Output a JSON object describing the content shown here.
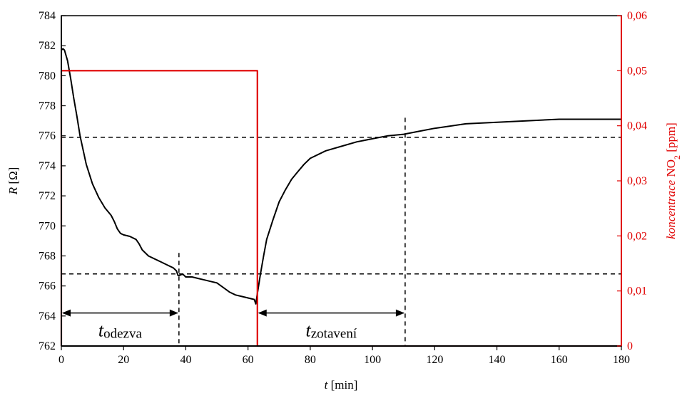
{
  "chart_data": {
    "type": "line",
    "xlabel_var": "t",
    "xlabel_unit": " [min]",
    "ylabel_var": "R",
    "ylabel_unit": " [Ω]",
    "y2label_var": "koncentrace",
    "y2label_gas": " NO",
    "y2label_sub": "2",
    "y2label_unit": " [ppm]",
    "xlim": [
      0,
      180
    ],
    "ylim": [
      762,
      784
    ],
    "y2lim": [
      0,
      0.06
    ],
    "x_ticks": [
      "0",
      "20",
      "40",
      "60",
      "80",
      "100",
      "120",
      "140",
      "160",
      "180"
    ],
    "y_ticks": [
      "762",
      "764",
      "766",
      "768",
      "770",
      "772",
      "774",
      "776",
      "778",
      "780",
      "782",
      "784"
    ],
    "y2_ticks": [
      "0",
      "0,01",
      "0,02",
      "0,03",
      "0,04",
      "0,05",
      "0,06"
    ],
    "grid": false,
    "legend": "none",
    "colors": {
      "resistance": "#000000",
      "concentration": "#e00000"
    },
    "series": [
      {
        "axis": "left",
        "x": [
          0,
          0.5,
          1,
          2,
          3,
          4,
          5,
          6,
          8,
          10,
          12,
          14,
          16,
          17,
          18,
          19,
          20,
          22,
          24,
          25,
          26,
          28,
          30,
          32,
          34,
          36,
          37,
          37.5,
          38,
          39,
          40,
          42,
          44,
          46,
          48,
          50,
          52,
          54,
          56,
          58,
          60,
          62,
          62.5,
          63,
          64,
          65,
          66,
          68,
          70,
          72,
          74,
          76,
          78,
          80,
          85,
          90,
          95,
          100,
          105,
          110,
          115,
          120,
          130,
          140,
          150,
          160,
          170,
          180
        ],
        "values": [
          781.7,
          781.8,
          781.7,
          781,
          779.8,
          778.5,
          777.3,
          776,
          774.1,
          772.8,
          771.9,
          771.2,
          770.7,
          770.3,
          769.8,
          769.5,
          769.4,
          769.3,
          769.1,
          768.8,
          768.4,
          768,
          767.8,
          767.6,
          767.4,
          767.2,
          767,
          766.7,
          766.7,
          766.8,
          766.6,
          766.6,
          766.5,
          766.4,
          766.3,
          766.2,
          765.9,
          765.6,
          765.4,
          765.3,
          765.2,
          765.1,
          764.8,
          765.5,
          766.8,
          768,
          769.1,
          770.4,
          771.6,
          772.4,
          773.1,
          773.6,
          774.1,
          774.5,
          775,
          775.3,
          775.6,
          775.8,
          776,
          776.1,
          776.3,
          776.5,
          776.8,
          776.9,
          777,
          777.1,
          777.1,
          777.1
        ]
      },
      {
        "axis": "right",
        "x": [
          0,
          0,
          63,
          63,
          180
        ],
        "values": [
          0,
          0.05,
          0.05,
          0,
          0
        ]
      }
    ],
    "reference_lines": {
      "h": [
        766.8,
        775.9
      ],
      "v": [
        37.8,
        110.5
      ]
    },
    "annotations": {
      "response": {
        "var": "t",
        "sub": "odezva",
        "x_from": 0,
        "x_to": 37.8,
        "y": 764.2
      },
      "recovery": {
        "var": "t",
        "sub": "zotavení",
        "x_from": 63,
        "x_to": 110.5,
        "y": 764.2
      }
    }
  }
}
